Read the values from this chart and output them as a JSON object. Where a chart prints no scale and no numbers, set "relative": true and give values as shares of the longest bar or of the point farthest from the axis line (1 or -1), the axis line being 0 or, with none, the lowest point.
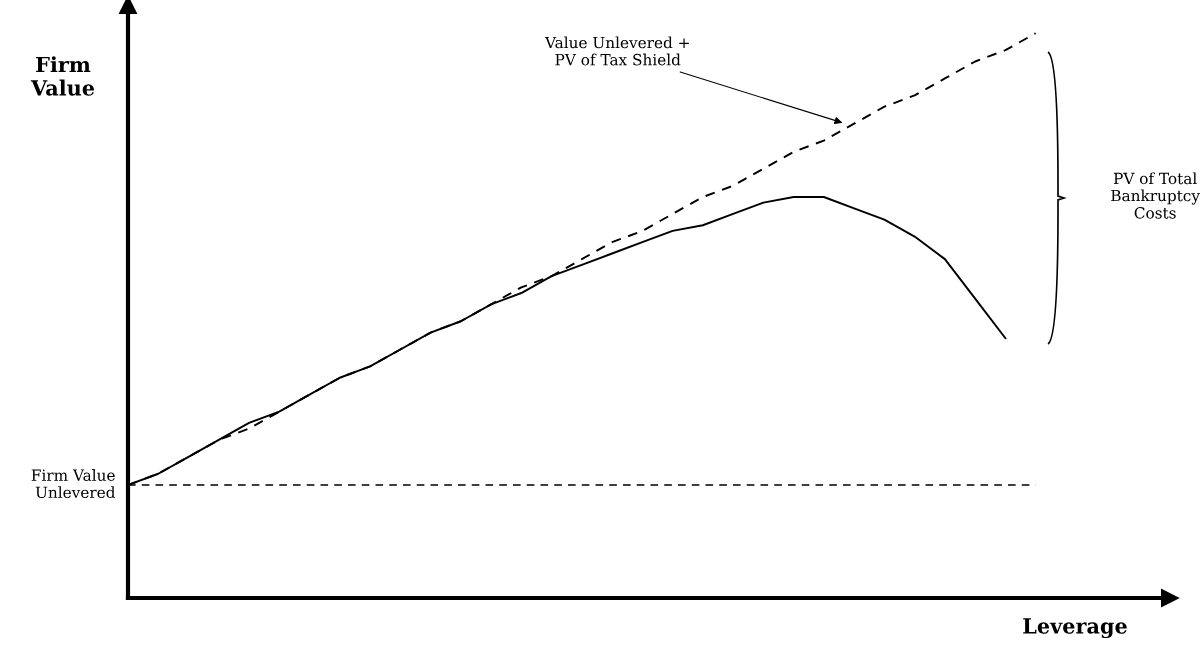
{
  "chart_data": {
    "type": "line",
    "relative": true,
    "xlabel": "Leverage",
    "ylabel": "Firm\nValue",
    "categories": [
      null,
      null,
      null,
      null,
      null,
      null,
      null,
      null,
      null,
      null,
      null,
      null,
      null,
      null,
      null,
      null,
      null,
      null,
      null,
      null,
      null,
      null,
      null,
      null,
      null,
      null,
      null,
      null,
      null,
      null,
      null
    ],
    "series": [
      {
        "color": "#000000",
        "line_style": "dashed",
        "values": [
          0.2,
          0.22,
          0.25,
          0.28,
          0.3,
          0.33,
          0.36,
          0.39,
          0.41,
          0.44,
          0.47,
          0.49,
          0.52,
          0.55,
          0.57,
          0.6,
          0.63,
          0.65,
          0.68,
          0.71,
          0.73,
          0.76,
          0.79,
          0.81,
          0.84,
          0.87,
          0.89,
          0.92,
          0.95,
          0.97,
          1.0
        ]
      },
      {
        "color": "#000000",
        "line_style": "solid",
        "values": [
          0.2,
          0.22,
          0.25,
          0.28,
          0.31,
          0.33,
          0.36,
          0.39,
          0.41,
          0.44,
          0.47,
          0.49,
          0.52,
          0.54,
          0.57,
          0.59,
          0.61,
          0.63,
          0.65,
          0.66,
          0.68,
          0.7,
          0.71,
          0.71,
          0.69,
          0.67,
          0.64,
          0.6,
          0.53,
          0.46,
          null
        ]
      }
    ],
    "ref_lines": [
      {
        "axis": "y",
        "value": 0.2,
        "label": "Firm Value\nUnlevered",
        "color": "#000000",
        "line_style": "dashed"
      }
    ],
    "annotations": [
      "Value Unlevered +\nPV of Tax Shield",
      "PV of Total\nBankruptcy\nCosts"
    ],
    "legend": false
  }
}
